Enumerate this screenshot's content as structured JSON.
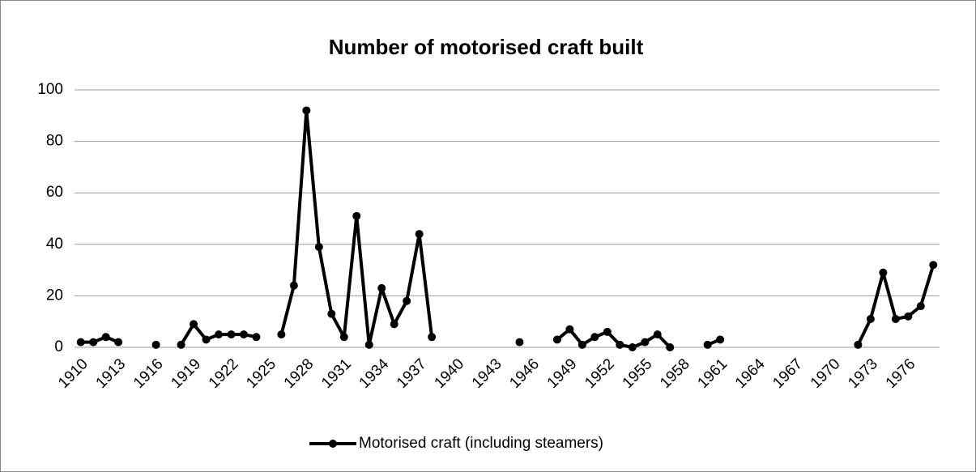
{
  "chart_data": {
    "type": "line",
    "title": "Number of motorised craft built",
    "categories": [
      "1910",
      null,
      null,
      "1913",
      null,
      null,
      "1916",
      null,
      null,
      "1919",
      null,
      null,
      "1922",
      null,
      null,
      "1925",
      null,
      null,
      "1928",
      null,
      null,
      "1931",
      null,
      null,
      "1934",
      null,
      null,
      "1937",
      null,
      null,
      "1940",
      null,
      null,
      "1943",
      null,
      null,
      "1946",
      null,
      null,
      "1949",
      null,
      null,
      "1952",
      null,
      null,
      "1955",
      null,
      null,
      "1958",
      null,
      null,
      "1961",
      null,
      null,
      "1964",
      null,
      null,
      "1967",
      null,
      null,
      "1970",
      null,
      null,
      "1973",
      null,
      null,
      "1976",
      null,
      null
    ],
    "series": [
      {
        "name": "Motorised craft (including steamers)",
        "color": "#000000",
        "values": [
          2,
          2,
          4,
          2,
          null,
          null,
          1,
          null,
          1,
          9,
          3,
          5,
          5,
          5,
          4,
          null,
          5,
          24,
          92,
          39,
          13,
          4,
          51,
          1,
          23,
          9,
          18,
          44,
          4,
          null,
          null,
          null,
          null,
          null,
          null,
          2,
          null,
          null,
          3,
          7,
          1,
          4,
          6,
          1,
          0,
          2,
          5,
          0,
          null,
          null,
          1,
          3,
          null,
          null,
          null,
          null,
          null,
          null,
          null,
          null,
          null,
          null,
          1,
          11,
          29,
          11,
          12,
          16,
          32
        ]
      }
    ],
    "ylim": [
      0,
      100
    ],
    "yticks": [
      0,
      20,
      40,
      60,
      80,
      100
    ],
    "grid": true,
    "legend": "bottom"
  }
}
